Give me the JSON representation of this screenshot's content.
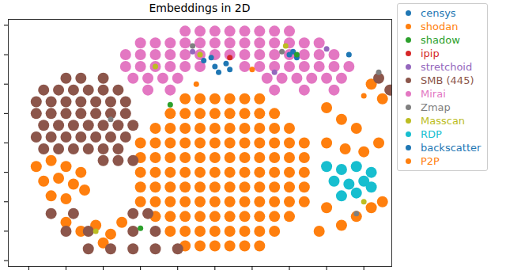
{
  "chart_data": {
    "type": "scatter",
    "title": "Embeddings in 2D",
    "xlim": [
      -55.5,
      47.5
    ],
    "ylim": [
      -42,
      42
    ],
    "xticks": [
      -50,
      -40,
      -30,
      -20,
      -10,
      0,
      10,
      20,
      30,
      40
    ],
    "yticks": [
      -40,
      -30,
      -20,
      -10,
      0,
      10,
      20,
      30,
      40
    ],
    "tick_labels": false,
    "legend": "right",
    "series": [
      {
        "name": "censys",
        "color": "#1f77b4",
        "x": [
          -3,
          0,
          3,
          1,
          21,
          22,
          -1
        ],
        "y": [
          28,
          26,
          27,
          24,
          31,
          29,
          29
        ]
      },
      {
        "name": "shodan",
        "color": "#ff7f0e",
        "x": [
          10,
          -5,
          40
        ],
        "y": [
          25,
          20,
          16
        ]
      },
      {
        "name": "shadow",
        "color": "#2ca02c",
        "x": [
          -12,
          22,
          -20
        ],
        "y": [
          13,
          30,
          -29
        ]
      },
      {
        "name": "ipip",
        "color": "#d62728",
        "x": [
          4
        ],
        "y": [
          29
        ]
      },
      {
        "name": "stretchoid",
        "color": "#9467bd",
        "x": [
          -6,
          16,
          30
        ],
        "y": [
          31,
          24,
          32
        ]
      },
      {
        "name": "SMB (445)",
        "color": "#8c564b",
        "x": [
          -40,
          -36,
          -30,
          -46,
          -42,
          -38,
          -34,
          -30,
          -26,
          -48,
          -44,
          -40,
          -36,
          -32,
          -28,
          -24,
          -48,
          -44,
          -40,
          -36,
          -32,
          -28,
          -24,
          -46,
          -42,
          -38,
          -34,
          -30,
          -26,
          -22,
          -48,
          -44,
          -40,
          -36,
          -32,
          -28,
          -24,
          -46,
          -42,
          -38,
          -34,
          -30,
          -26,
          -30,
          -26,
          -22,
          -44,
          -38,
          -22,
          -18,
          -40,
          -34,
          -22,
          -16,
          -34,
          -28,
          -22,
          -16,
          -10,
          44,
          47
        ],
        "y": [
          22,
          22,
          22,
          18,
          18,
          18,
          18,
          18,
          18,
          14,
          14,
          14,
          14,
          14,
          14,
          14,
          10,
          10,
          10,
          10,
          10,
          10,
          10,
          6,
          6,
          6,
          6,
          6,
          6,
          6,
          2,
          2,
          2,
          2,
          2,
          2,
          2,
          -2,
          -2,
          -2,
          -2,
          -2,
          -2,
          -6,
          -6,
          -6,
          -24,
          -24,
          -24,
          -24,
          -30,
          -30,
          -30,
          -30,
          -36,
          -36,
          -36,
          -36,
          -36,
          22,
          18
        ]
      },
      {
        "name": "Mirai",
        "color": "#e377c2",
        "x": [
          -8,
          -4,
          0,
          4,
          8,
          12,
          16,
          20,
          -20,
          -16,
          -12,
          -8,
          -4,
          0,
          4,
          8,
          12,
          16,
          20,
          24,
          28,
          -24,
          -20,
          -16,
          -12,
          -8,
          -4,
          0,
          4,
          8,
          12,
          16,
          20,
          24,
          28,
          32,
          -24,
          -20,
          -16,
          -12,
          -8,
          -4,
          8,
          12,
          16,
          20,
          24,
          28,
          32,
          36,
          -22,
          -18,
          -14,
          -10,
          14,
          18,
          22,
          26,
          30,
          34,
          -18,
          -12,
          16,
          24,
          32
        ],
        "y": [
          38,
          38,
          38,
          38,
          38,
          38,
          38,
          38,
          34,
          34,
          34,
          34,
          34,
          34,
          34,
          34,
          34,
          34,
          34,
          34,
          34,
          30,
          30,
          30,
          30,
          30,
          30,
          30,
          30,
          30,
          30,
          30,
          30,
          30,
          30,
          30,
          26,
          26,
          26,
          26,
          26,
          26,
          26,
          26,
          26,
          26,
          26,
          26,
          26,
          26,
          22,
          22,
          22,
          22,
          22,
          22,
          22,
          22,
          22,
          22,
          18,
          18,
          18,
          18,
          18
        ]
      },
      {
        "name": "Zmap",
        "color": "#7f7f7f",
        "x": [
          18,
          44,
          -28,
          38,
          -6
        ],
        "y": [
          31,
          24,
          8,
          -24,
          33
        ]
      },
      {
        "name": "Masscan",
        "color": "#bcbd22",
        "x": [
          -16,
          19,
          -32,
          40,
          -4
        ],
        "y": [
          26,
          33,
          -30,
          -20,
          30
        ]
      },
      {
        "name": "RDP",
        "color": "#17becf",
        "x": [
          30,
          34,
          38,
          42,
          32,
          36,
          40,
          34,
          38,
          42
        ],
        "y": [
          -8,
          -9,
          -8,
          -10,
          -13,
          -14,
          -13,
          -18,
          -17,
          -15
        ]
      },
      {
        "name": "backscatter",
        "color": "#1f77b4",
        "x": [
          20,
          4,
          36
        ],
        "y": [
          30,
          25,
          30
        ]
      },
      {
        "name": "P2P",
        "color": "#ff7f0e",
        "x": [
          -8,
          -4,
          0,
          4,
          8,
          12,
          -12,
          -8,
          -4,
          0,
          4,
          8,
          12,
          16,
          -16,
          -12,
          -8,
          -4,
          0,
          4,
          8,
          12,
          16,
          20,
          -20,
          -16,
          -12,
          -8,
          -4,
          0,
          4,
          8,
          12,
          16,
          20,
          24,
          -20,
          -16,
          -12,
          -8,
          -4,
          0,
          4,
          8,
          12,
          16,
          20,
          24,
          -20,
          -16,
          -12,
          -8,
          -4,
          0,
          4,
          8,
          12,
          16,
          20,
          24,
          -20,
          -16,
          -12,
          -8,
          -4,
          0,
          4,
          8,
          12,
          16,
          20,
          24,
          -20,
          -16,
          -12,
          -8,
          -4,
          0,
          4,
          8,
          12,
          16,
          20,
          24,
          -16,
          -12,
          -8,
          -4,
          0,
          4,
          8,
          12,
          16,
          20,
          -12,
          -8,
          -4,
          0,
          4,
          8,
          12,
          16,
          -8,
          -4,
          0,
          4,
          8,
          12,
          -48,
          -44,
          -40,
          -36,
          -46,
          -42,
          -38,
          -44,
          -40,
          -35,
          -40,
          -36,
          -32,
          -28,
          -25,
          -30,
          30,
          34,
          38,
          30,
          35,
          40,
          44,
          42,
          38,
          34,
          30,
          28,
          45,
          42,
          45
        ],
        "y": [
          15,
          15,
          15,
          15,
          15,
          15,
          10,
          10,
          10,
          10,
          10,
          10,
          10,
          10,
          5,
          5,
          5,
          5,
          5,
          5,
          5,
          5,
          5,
          5,
          0,
          0,
          0,
          0,
          0,
          0,
          0,
          0,
          0,
          0,
          0,
          0,
          -5,
          -5,
          -5,
          -5,
          -5,
          -5,
          -5,
          -5,
          -5,
          -5,
          -5,
          -5,
          -10,
          -10,
          -10,
          -10,
          -10,
          -10,
          -10,
          -10,
          -10,
          -10,
          -10,
          -10,
          -15,
          -15,
          -15,
          -15,
          -15,
          -15,
          -15,
          -15,
          -15,
          -15,
          -15,
          -15,
          -20,
          -20,
          -20,
          -20,
          -20,
          -20,
          -20,
          -20,
          -20,
          -20,
          -20,
          -20,
          -25,
          -25,
          -25,
          -25,
          -25,
          -25,
          -25,
          -25,
          -25,
          -25,
          -30,
          -30,
          -30,
          -30,
          -30,
          -30,
          -30,
          -30,
          -35,
          -35,
          -35,
          -35,
          -35,
          -35,
          -8,
          -6,
          -8,
          -10,
          -13,
          -12,
          -14,
          -18,
          -19,
          -16,
          -27,
          -30,
          -28,
          -31,
          -27,
          -34,
          12,
          8,
          5,
          0,
          -2,
          -3,
          0,
          -22,
          -25,
          -28,
          -22,
          -30,
          -20,
          20,
          15
        ]
      }
    ]
  }
}
